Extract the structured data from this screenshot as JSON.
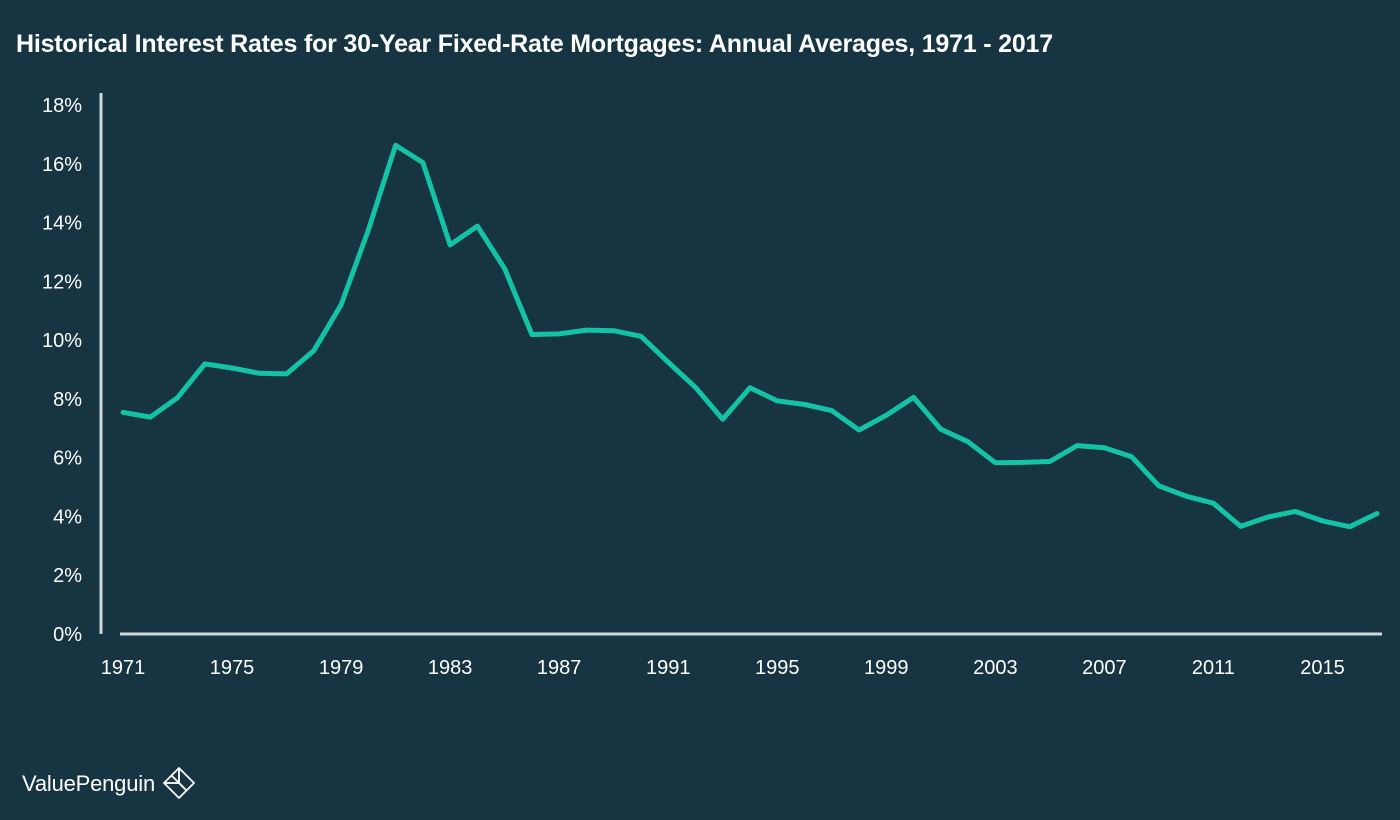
{
  "chart_data": {
    "type": "line",
    "title": "Historical Interest Rates for 30-Year Fixed-Rate Mortgages: Annual Averages, 1971 - 2017",
    "xlabel": "",
    "ylabel": "",
    "x": [
      1971,
      1972,
      1973,
      1974,
      1975,
      1976,
      1977,
      1978,
      1979,
      1980,
      1981,
      1982,
      1983,
      1984,
      1985,
      1986,
      1987,
      1988,
      1989,
      1990,
      1991,
      1992,
      1993,
      1994,
      1995,
      1996,
      1997,
      1998,
      1999,
      2000,
      2001,
      2002,
      2003,
      2004,
      2005,
      2006,
      2007,
      2008,
      2009,
      2010,
      2011,
      2012,
      2013,
      2014,
      2015,
      2016,
      2017
    ],
    "series": [
      {
        "values": [
          7.54,
          7.38,
          8.04,
          9.19,
          9.05,
          8.87,
          8.85,
          9.64,
          11.2,
          13.74,
          16.63,
          16.04,
          13.24,
          13.88,
          12.43,
          10.19,
          10.21,
          10.34,
          10.32,
          10.13,
          9.25,
          8.39,
          7.31,
          8.38,
          7.93,
          7.81,
          7.6,
          6.94,
          7.44,
          8.05,
          6.97,
          6.54,
          5.83,
          5.84,
          5.87,
          6.41,
          6.34,
          6.03,
          5.04,
          4.69,
          4.45,
          3.66,
          3.98,
          4.17,
          3.85,
          3.65,
          4.1
        ],
        "color": "#14c2a5"
      }
    ],
    "y_ticks": [
      "0%",
      "2%",
      "4%",
      "6%",
      "8%",
      "10%",
      "12%",
      "14%",
      "16%",
      "18%"
    ],
    "x_ticks": [
      "1971",
      "1975",
      "1979",
      "1983",
      "1987",
      "1991",
      "1995",
      "1999",
      "2003",
      "2007",
      "2011",
      "2015"
    ],
    "ylim": [
      0,
      18
    ],
    "xlim": [
      1971,
      2017
    ],
    "grid": false,
    "legend": "none"
  },
  "colors": {
    "background": "#163441",
    "line": "#14c2a5",
    "axis": "#cfd6d9",
    "text": "#ffffff"
  },
  "branding": {
    "name": "ValuePenguin",
    "logo_icon": "penguin-diamond-icon"
  }
}
